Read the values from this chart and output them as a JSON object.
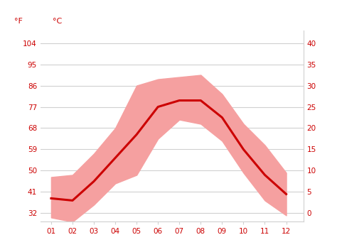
{
  "months": [
    1,
    2,
    3,
    4,
    5,
    6,
    7,
    8,
    9,
    10,
    11,
    12
  ],
  "x_positions": [
    1,
    2,
    3,
    4,
    5,
    6,
    7,
    8,
    9,
    10,
    11,
    12
  ],
  "mean_temp_c": [
    3.5,
    3.0,
    7.5,
    13.0,
    18.5,
    25.0,
    26.5,
    26.5,
    22.5,
    15.0,
    9.0,
    4.5
  ],
  "high_temp_c": [
    8.5,
    9.0,
    14.0,
    20.0,
    30.0,
    31.5,
    32.0,
    32.5,
    28.0,
    21.0,
    16.0,
    9.5
  ],
  "low_temp_c": [
    -1.0,
    -2.0,
    2.0,
    7.0,
    9.0,
    17.5,
    22.0,
    21.0,
    17.0,
    9.5,
    3.0,
    -0.5
  ],
  "y_ticks_c": [
    0,
    5,
    10,
    15,
    20,
    25,
    30,
    35,
    40
  ],
  "y_ticks_f": [
    32,
    41,
    50,
    59,
    68,
    77,
    86,
    95,
    104
  ],
  "x_tick_labels": [
    "01",
    "02",
    "03",
    "04",
    "05",
    "06",
    "07",
    "08",
    "09",
    "10",
    "11",
    "12"
  ],
  "mean_color": "#cc0000",
  "band_color": "#f5a0a0",
  "background_color": "#ffffff",
  "grid_color": "#d0d0d0",
  "label_color": "#cc0000",
  "ylabel_left": "°F",
  "ylabel_right": "°C",
  "ylim_c": [
    -2,
    43
  ],
  "xlim": [
    0.5,
    12.8
  ]
}
